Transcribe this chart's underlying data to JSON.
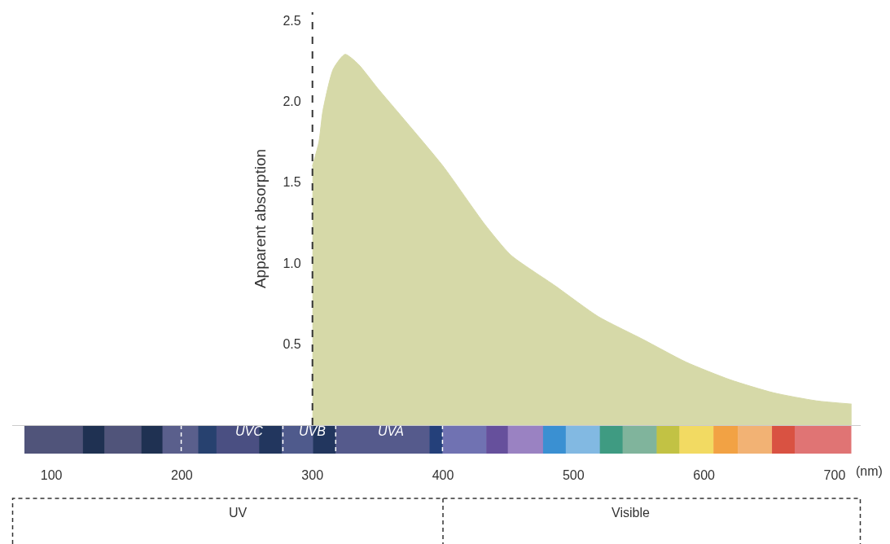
{
  "chart_data": {
    "type": "area",
    "ylabel": "Apparent absorption",
    "xlabel": "(nm)",
    "x": [
      300,
      305,
      308,
      316,
      325,
      335,
      350,
      370,
      400,
      432,
      452,
      486,
      519,
      553,
      586,
      620,
      653,
      686,
      713
    ],
    "values": [
      1.6,
      1.75,
      1.94,
      2.2,
      2.29,
      2.23,
      2.08,
      1.89,
      1.6,
      1.24,
      1.05,
      0.86,
      0.67,
      0.53,
      0.39,
      0.28,
      0.2,
      0.15,
      0.13
    ],
    "color": "#d6d9a8",
    "xlim": [
      70,
      720
    ],
    "xticks": [
      100,
      200,
      300,
      400,
      500,
      600,
      700
    ],
    "ylim": [
      0,
      2.55
    ],
    "yticks": [
      0.5,
      {
        "value": 1,
        "label": "1.0"
      },
      1.5,
      {
        "value": 2,
        "label": "2.0"
      },
      2.5
    ],
    "ref_lines": [
      {
        "axis": "x",
        "value": 300,
        "line_style": "dashed",
        "color": "#333333"
      }
    ],
    "annotations": [
      "UVC",
      "UVB",
      "UVA",
      "UV",
      "Visible"
    ]
  }
}
